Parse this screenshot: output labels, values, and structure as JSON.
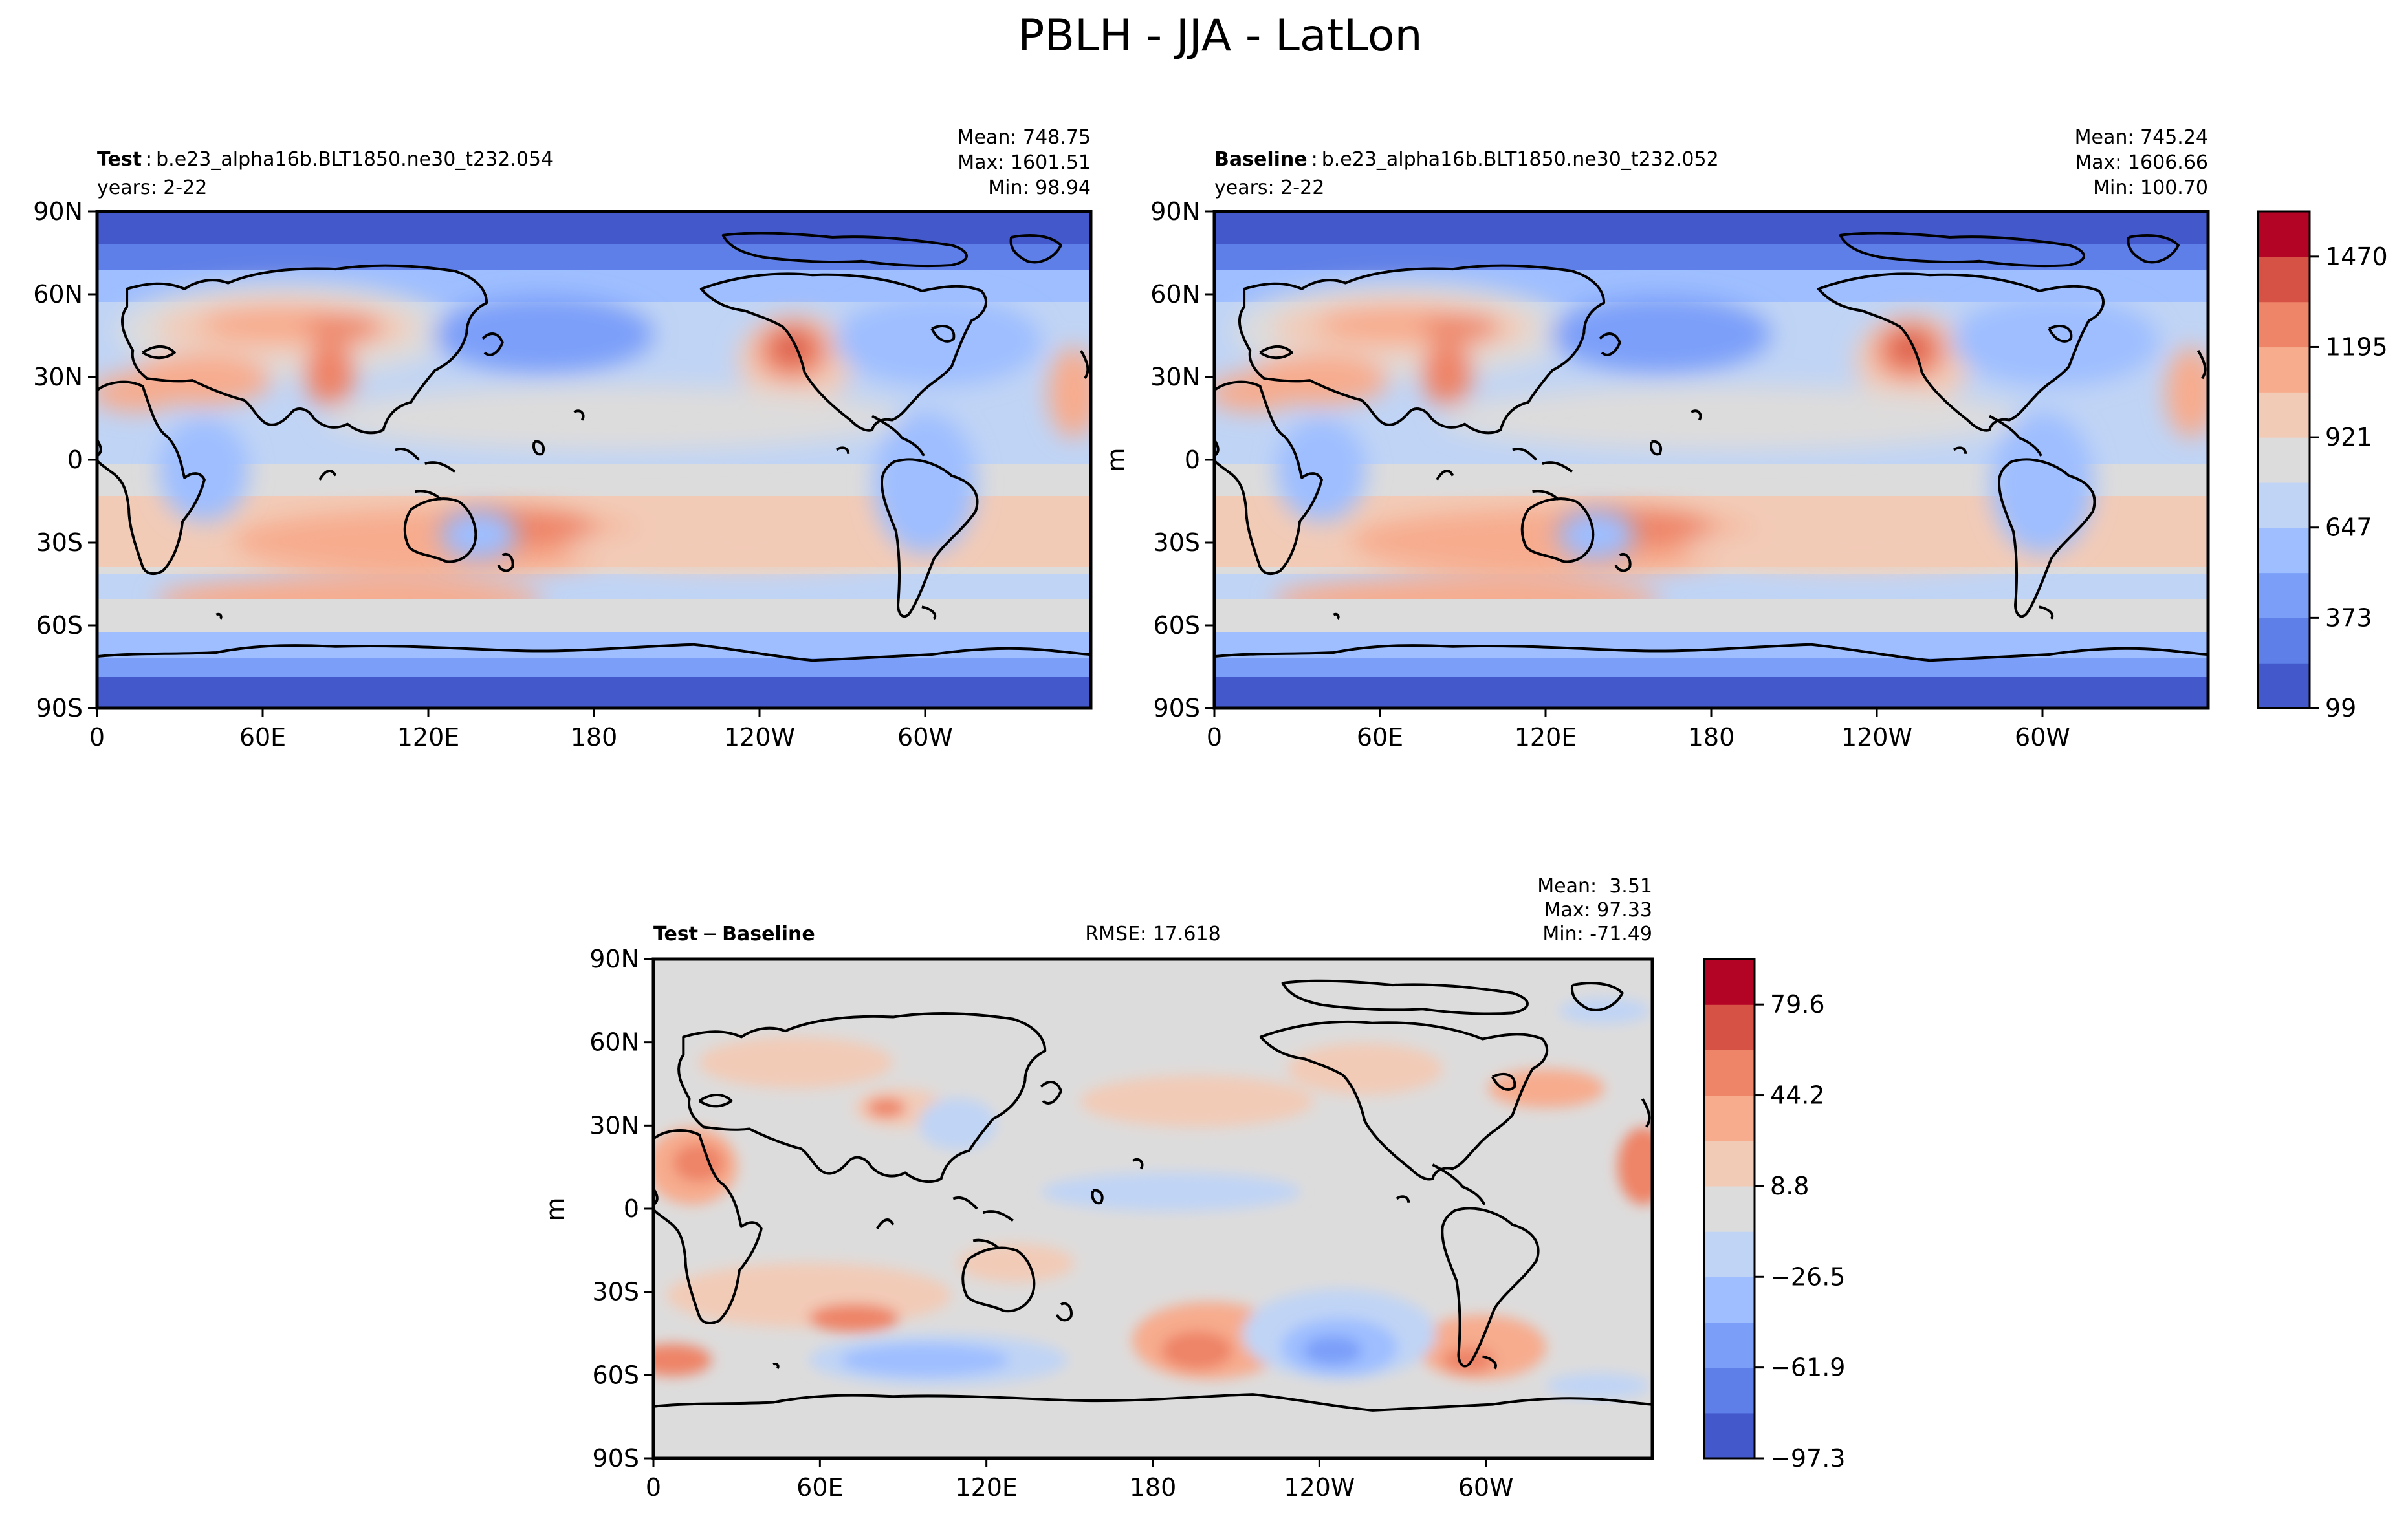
{
  "figure": {
    "title": "PBLH - JJA - LatLon"
  },
  "colors": {
    "seq": [
      "#4358cb",
      "#5f7fe8",
      "#7b9ff9",
      "#9ebeff",
      "#c0d4f5",
      "#dddcdc",
      "#f2cbb7",
      "#f7ac8e",
      "#ee8468",
      "#d65244",
      "#b40426"
    ],
    "land_outline": "#000000",
    "background": "#ffffff"
  },
  "panels": {
    "test": {
      "label_bold": "Test",
      "label_sep": ":",
      "case": "b.e23_alpha16b.BLT1850.ne30_t232.054",
      "years": "years: 2-22",
      "mean": "Mean: 748.75",
      "max": "Max: 1601.51",
      "min": "Min: 98.94"
    },
    "baseline": {
      "label_bold": "Baseline",
      "label_sep": ":",
      "case": "b.e23_alpha16b.BLT1850.ne30_t232.052",
      "years": "years: 2-22",
      "mean": "Mean: 745.24",
      "max": "Max: 1606.66",
      "min": "Min: 100.70",
      "ylabel": "m"
    },
    "diff": {
      "label_a": "Test",
      "label_op": "−",
      "label_b": "Baseline",
      "rmse": "RMSE: 17.618",
      "mean": "Mean:  3.51",
      "max": "Max: 97.33",
      "min": "Min: -71.49",
      "ylabel": "m"
    }
  },
  "axes": {
    "lat_ticks": [
      "90N",
      "60N",
      "30N",
      "0",
      "30S",
      "60S",
      "90S"
    ],
    "lon_ticks": [
      "0",
      "60E",
      "120E",
      "180",
      "120W",
      "60W"
    ]
  },
  "colorbars": {
    "top": {
      "ticks": [
        "1470",
        "1195",
        "921",
        "647",
        "373",
        "99"
      ]
    },
    "diff": {
      "ticks": [
        "79.6",
        "44.2",
        "8.8",
        "−26.5",
        "−61.9",
        "−97.3"
      ]
    }
  },
  "chart_data": [
    {
      "type": "heatmap",
      "title": "Test",
      "variable": "PBLH",
      "units": "m",
      "xlim": [
        0,
        360
      ],
      "ylim": [
        -90,
        90
      ],
      "levels": [
        99,
        236,
        373,
        510,
        647,
        784,
        921,
        1058,
        1195,
        1332,
        1470,
        1607
      ],
      "stats": {
        "mean": 748.75,
        "max": 1601.51,
        "min": 98.94
      }
    },
    {
      "type": "heatmap",
      "title": "Baseline",
      "variable": "PBLH",
      "units": "m",
      "xlim": [
        0,
        360
      ],
      "ylim": [
        -90,
        90
      ],
      "levels": [
        99,
        236,
        373,
        510,
        647,
        784,
        921,
        1058,
        1195,
        1332,
        1470,
        1607
      ],
      "stats": {
        "mean": 745.24,
        "max": 1606.66,
        "min": 100.7
      }
    },
    {
      "type": "heatmap",
      "title": "Test − Baseline",
      "variable": "PBLH",
      "units": "m",
      "xlim": [
        0,
        360
      ],
      "ylim": [
        -90,
        90
      ],
      "levels": [
        -97.3,
        -79.6,
        -61.9,
        -44.2,
        -26.5,
        -8.8,
        8.8,
        26.5,
        44.2,
        61.9,
        79.6,
        97.3
      ],
      "stats": {
        "mean": 3.51,
        "max": 97.33,
        "min": -71.49,
        "rmse": 17.618
      }
    }
  ]
}
